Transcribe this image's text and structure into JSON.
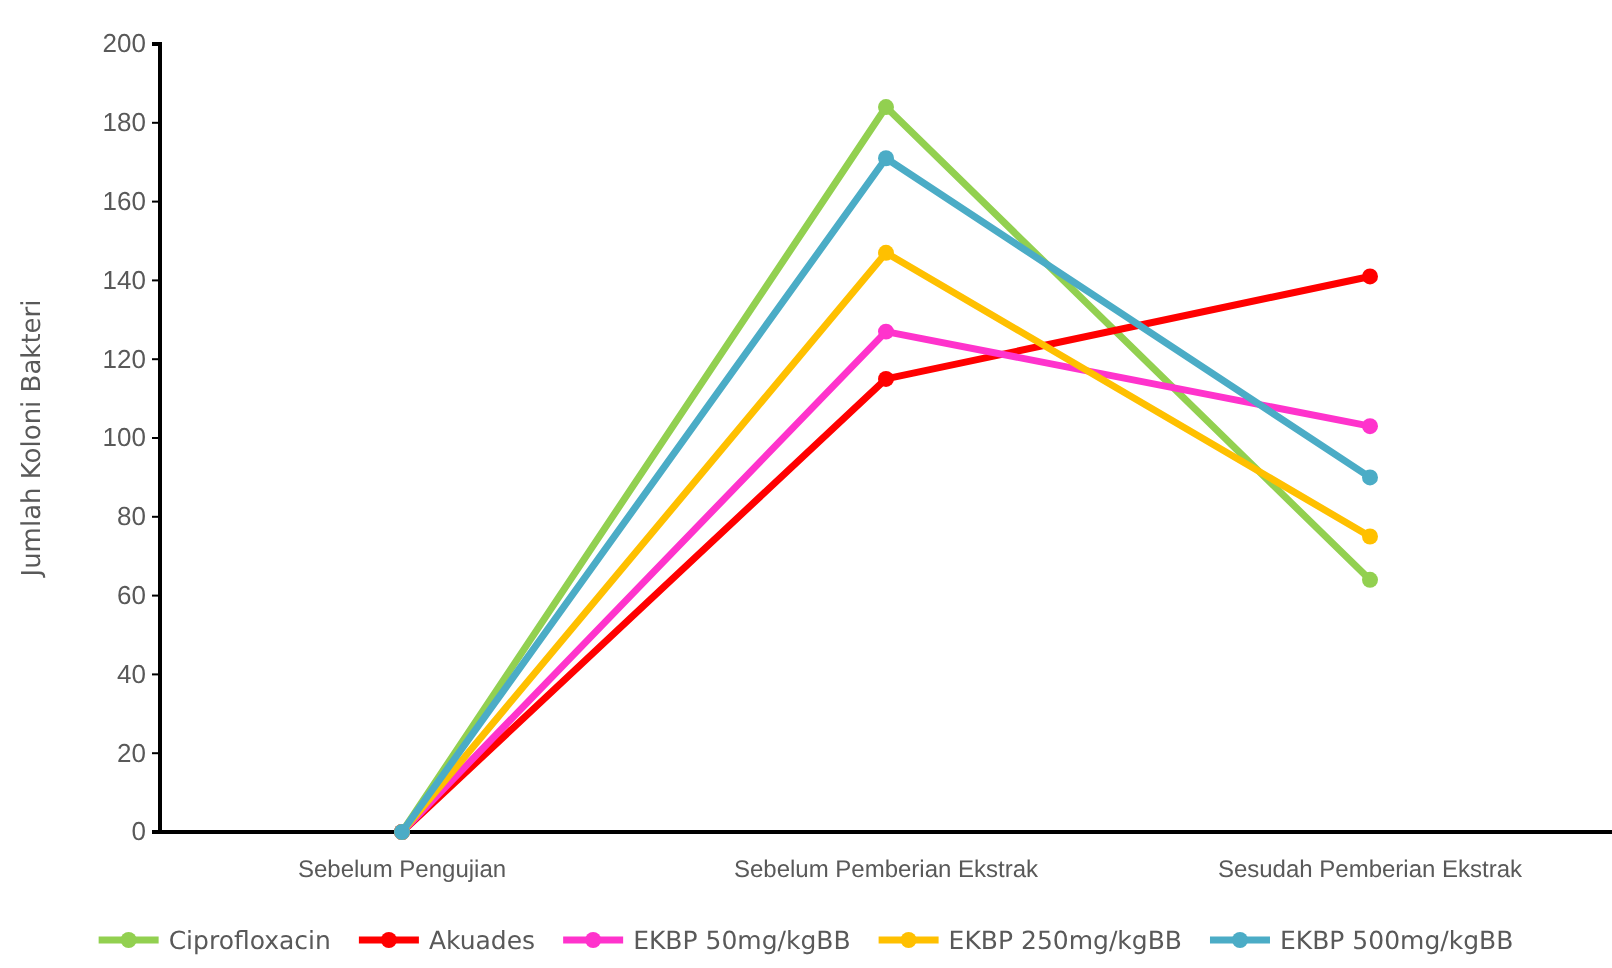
{
  "chart_data": {
    "type": "line",
    "ylabel": "Jumlah Koloni Bakteri",
    "categories": [
      "Sebelum Pengujian",
      "Sebelum Pemberian Ekstrak",
      "Sesudah Pemberian Ekstrak"
    ],
    "series": [
      {
        "name": "Ciprofloxacin",
        "color": "#92d050",
        "values": [
          0,
          184,
          64
        ]
      },
      {
        "name": "Akuades",
        "color": "#ff0000",
        "values": [
          0,
          115,
          141
        ]
      },
      {
        "name": "EKBP 50mg/kgBB",
        "color": "#ff33cc",
        "values": [
          0,
          127,
          103
        ]
      },
      {
        "name": "EKBP 250mg/kgBB",
        "color": "#ffc000",
        "values": [
          0,
          147,
          75
        ]
      },
      {
        "name": "EKBP 500mg/kgBB",
        "color": "#4bacc6",
        "values": [
          0,
          171,
          90
        ]
      }
    ],
    "ylim": [
      0,
      200
    ],
    "yticks": [
      0,
      20,
      40,
      60,
      80,
      100,
      120,
      140,
      160,
      180,
      200
    ],
    "grid": false,
    "legend": "bottom",
    "marker": "circle",
    "line_style": "solid"
  }
}
